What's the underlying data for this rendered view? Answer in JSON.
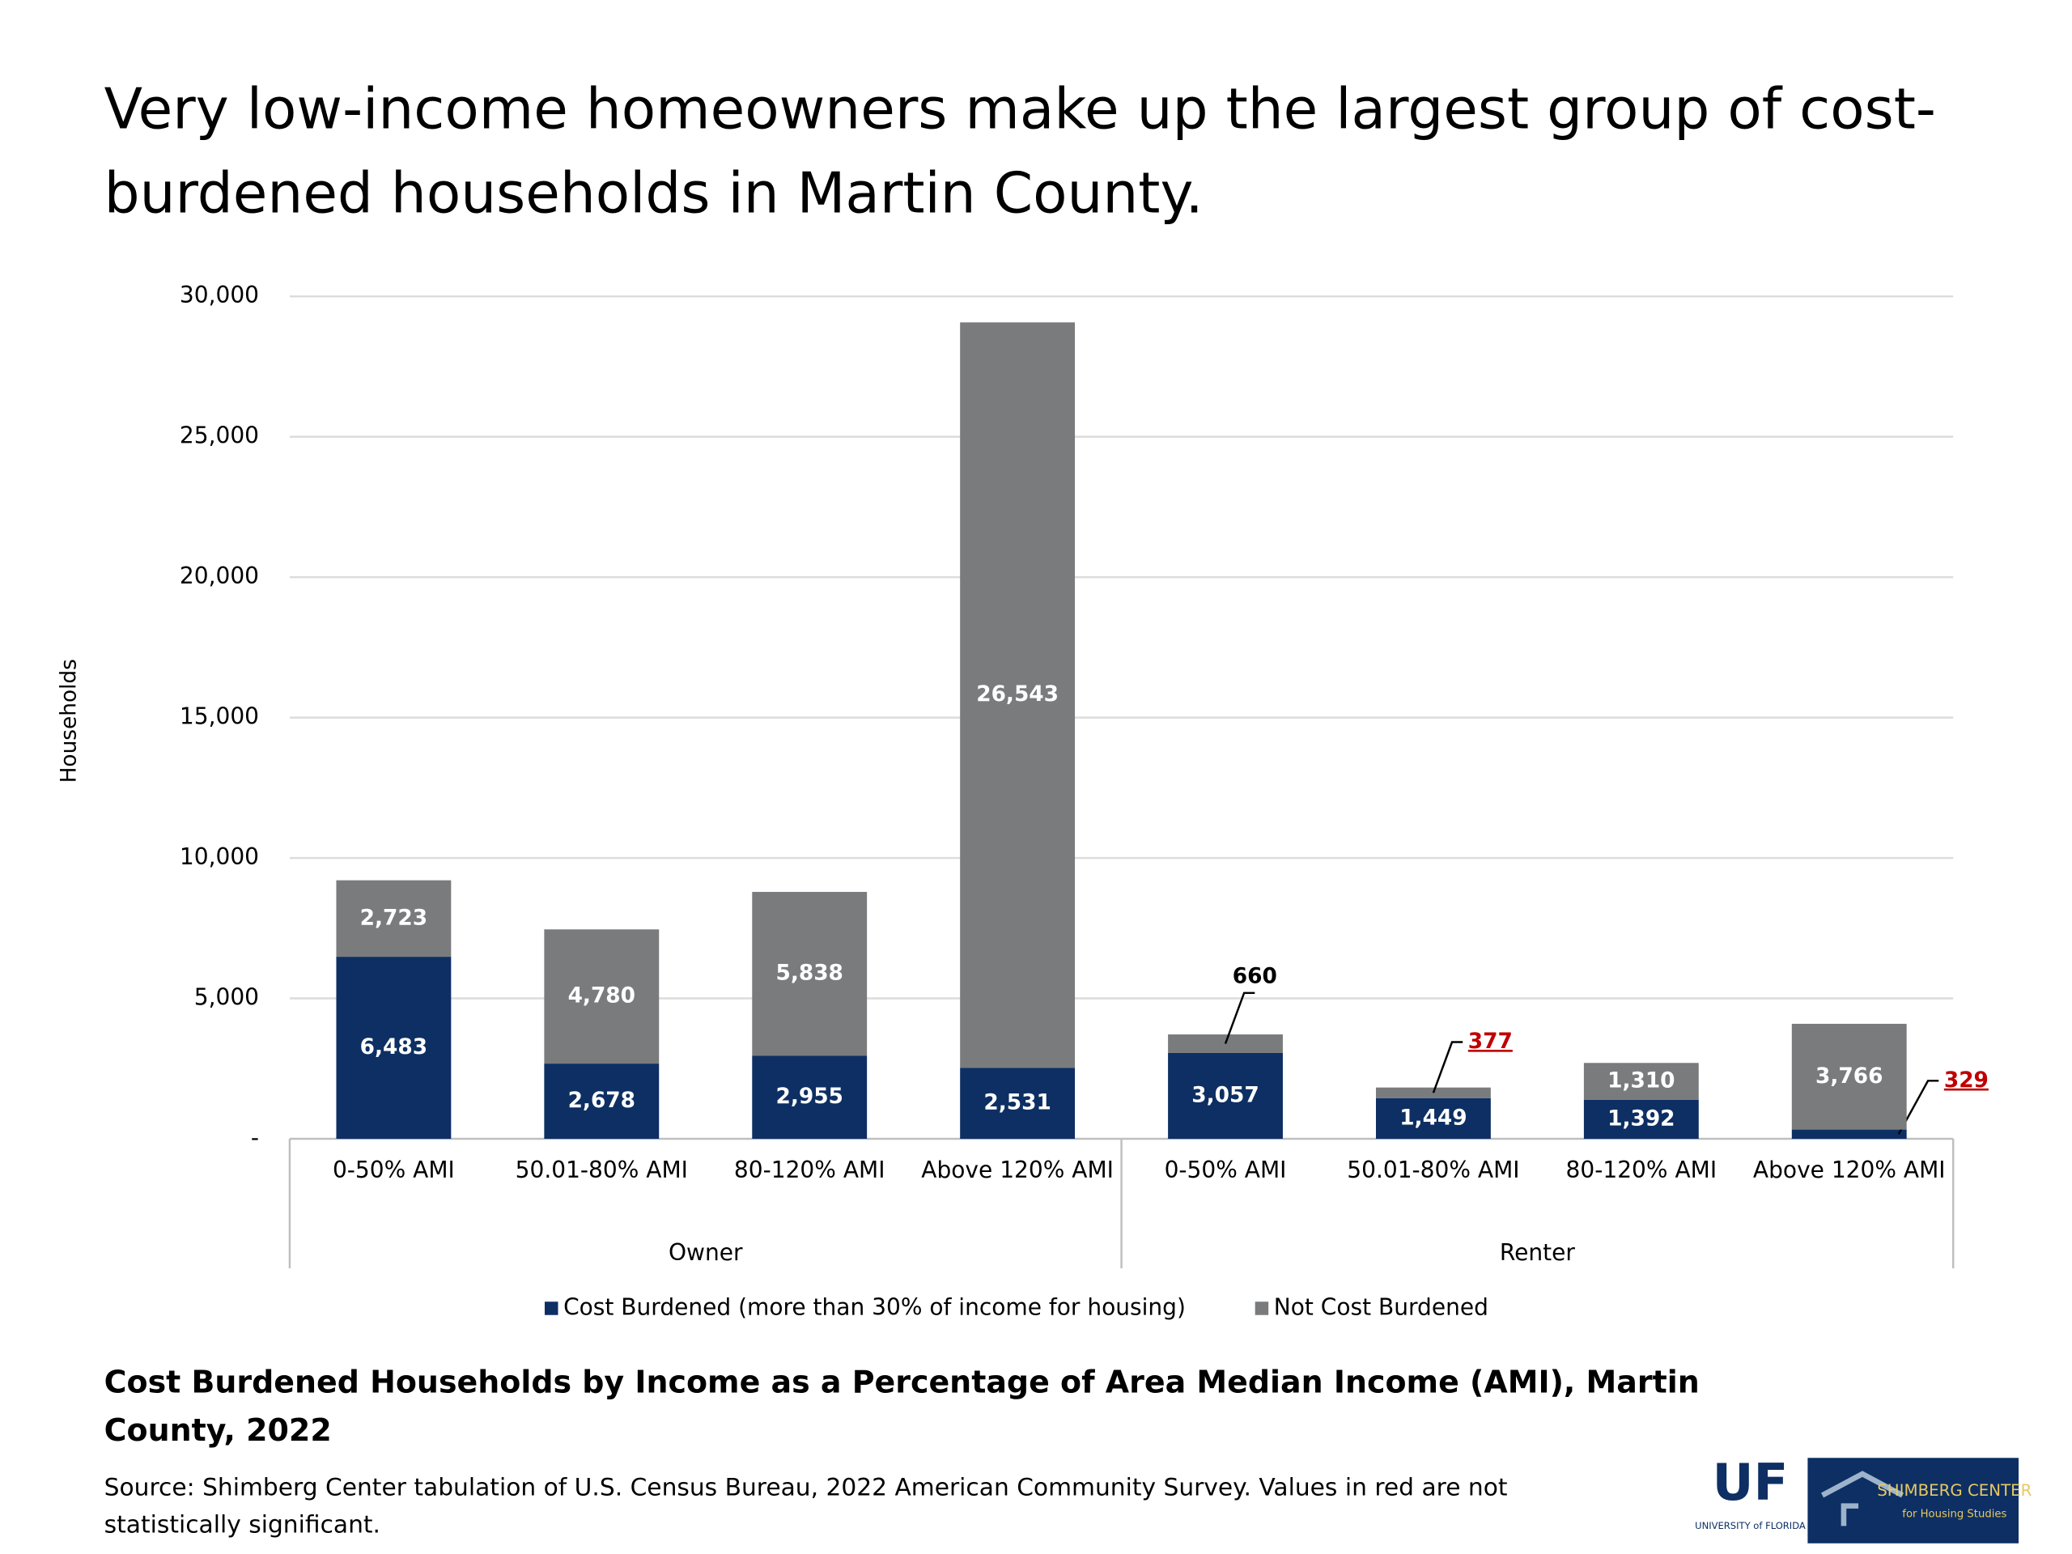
{
  "chart_data": {
    "type": "stacked_bar",
    "title": "Very low-income homeowners make up the largest group of cost-burdened households in Martin County.",
    "ylabel": "Households",
    "categories": [
      "0-50% AMI",
      "50.01-80% AMI",
      "80-120% AMI",
      "Above 120% AMI",
      "0-50% AMI",
      "50.01-80% AMI",
      "80-120% AMI",
      "Above 120% AMI"
    ],
    "groups": [
      {
        "name": "Owner",
        "size": 4
      },
      {
        "name": "Renter",
        "size": 4
      }
    ],
    "series": [
      {
        "name": "Cost Burdened (more than 30% of income for housing)",
        "color": "#0d2f63",
        "values": [
          6483,
          2678,
          2955,
          2531,
          3057,
          1449,
          1392,
          329
        ],
        "value_labels": [
          "6,483",
          "2,678",
          "2,955",
          "2,531",
          "3,057",
          "1,449",
          "1,392",
          "329"
        ],
        "label_colors": [
          "#ffffff",
          "#ffffff",
          "#ffffff",
          "#ffffff",
          "#ffffff",
          "#ffffff",
          "#ffffff",
          "#c00000"
        ]
      },
      {
        "name": "Not Cost Burdened",
        "color": "#7a7b7d",
        "values": [
          2723,
          4780,
          5838,
          26543,
          660,
          377,
          1310,
          3766
        ],
        "value_labels": [
          "2,723",
          "4,780",
          "5,838",
          "26,543",
          "660",
          "377",
          "1,310",
          "3,766"
        ],
        "label_colors": [
          "#ffffff",
          "#ffffff",
          "#ffffff",
          "#ffffff",
          "#000000",
          "#c00000",
          "#ffffff",
          "#ffffff"
        ]
      }
    ],
    "ylim": [
      0,
      30000
    ],
    "yticks": [
      {
        "value": 0,
        "label": "-"
      },
      {
        "value": 5000,
        "label": "5,000"
      },
      {
        "value": 10000,
        "label": "10,000"
      },
      {
        "value": 15000,
        "label": "15,000"
      },
      {
        "value": 20000,
        "label": "20,000"
      },
      {
        "value": 25000,
        "label": "25,000"
      },
      {
        "value": 30000,
        "label": "30,000"
      }
    ],
    "grid": true,
    "legend": "bottom",
    "caption": "Cost Burdened Households by Income as a Percentage of Area Median Income (AMI), Martin County, 2022",
    "source": "Source: Shimberg Center tabulation of U.S. Census Bureau, 2022 American Community Survey. Values in red are not statistically significant."
  },
  "logos": {
    "uf": "UF",
    "uf_sub": "UNIVERSITY of FLORIDA",
    "center": "SHIMBERG CENTER",
    "center_sub": "for Housing Studies"
  }
}
